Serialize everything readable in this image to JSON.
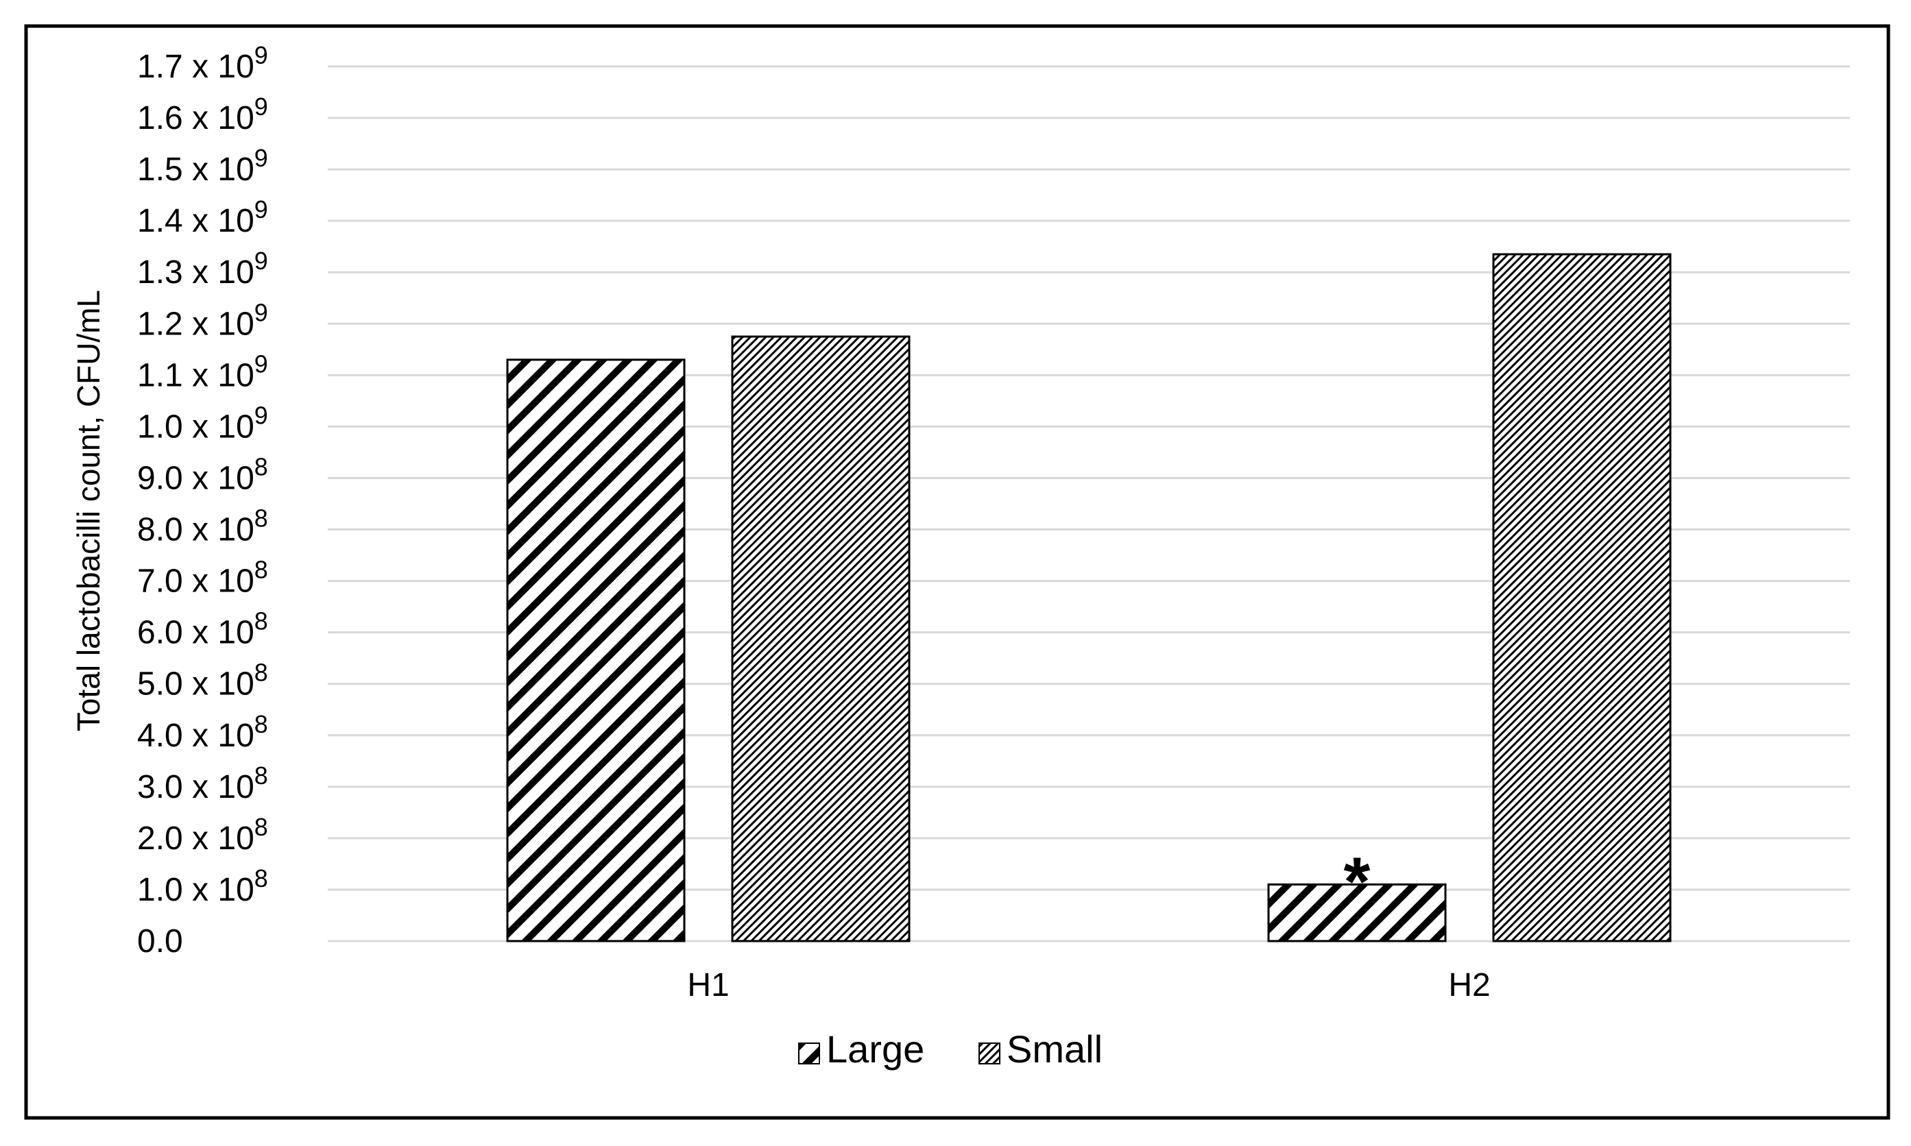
{
  "chart_data": {
    "type": "bar",
    "title": "",
    "xlabel": "",
    "ylabel": "Total lactobacilli count, CFU/mL",
    "categories": [
      "H1",
      "H2"
    ],
    "series": [
      {
        "name": "Large",
        "pattern": "wide-diagonal-hatch",
        "values": [
          1130000000,
          110000000
        ]
      },
      {
        "name": "Small",
        "pattern": "fine-diagonal-hatch",
        "values": [
          1175000000,
          1335000000
        ]
      }
    ],
    "ylim": [
      0,
      1700000000
    ],
    "yticks": [
      {
        "value": 0,
        "mantissa": "0.0",
        "exponent": ""
      },
      {
        "value": 100000000,
        "mantissa": "1.0 x 10",
        "exponent": "8"
      },
      {
        "value": 200000000,
        "mantissa": "2.0 x 10",
        "exponent": "8"
      },
      {
        "value": 300000000,
        "mantissa": "3.0 x 10",
        "exponent": "8"
      },
      {
        "value": 400000000,
        "mantissa": "4.0 x 10",
        "exponent": "8"
      },
      {
        "value": 500000000,
        "mantissa": "5.0 x 10",
        "exponent": "8"
      },
      {
        "value": 600000000,
        "mantissa": "6.0 x 10",
        "exponent": "8"
      },
      {
        "value": 700000000,
        "mantissa": "7.0 x 10",
        "exponent": "8"
      },
      {
        "value": 800000000,
        "mantissa": "8.0 x 10",
        "exponent": "8"
      },
      {
        "value": 900000000,
        "mantissa": "9.0 x 10",
        "exponent": "8"
      },
      {
        "value": 1000000000,
        "mantissa": "1.0 x 10",
        "exponent": "9"
      },
      {
        "value": 1100000000,
        "mantissa": "1.1 x 10",
        "exponent": "9"
      },
      {
        "value": 1200000000,
        "mantissa": "1.2 x 10",
        "exponent": "9"
      },
      {
        "value": 1300000000,
        "mantissa": "1.3 x 10",
        "exponent": "9"
      },
      {
        "value": 1400000000,
        "mantissa": "1.4 x 10",
        "exponent": "9"
      },
      {
        "value": 1500000000,
        "mantissa": "1.5 x 10",
        "exponent": "9"
      },
      {
        "value": 1600000000,
        "mantissa": "1.6 x 10",
        "exponent": "9"
      },
      {
        "value": 1700000000,
        "mantissa": "1.7 x 10",
        "exponent": "9"
      }
    ],
    "annotations": [
      {
        "text": "*",
        "category": "H2",
        "series": "Large"
      }
    ],
    "grid": true,
    "legend_position": "bottom-center",
    "colors": {
      "bar_stroke": "#000000",
      "gridline": "#d9d9d9",
      "border": "#000000"
    }
  }
}
